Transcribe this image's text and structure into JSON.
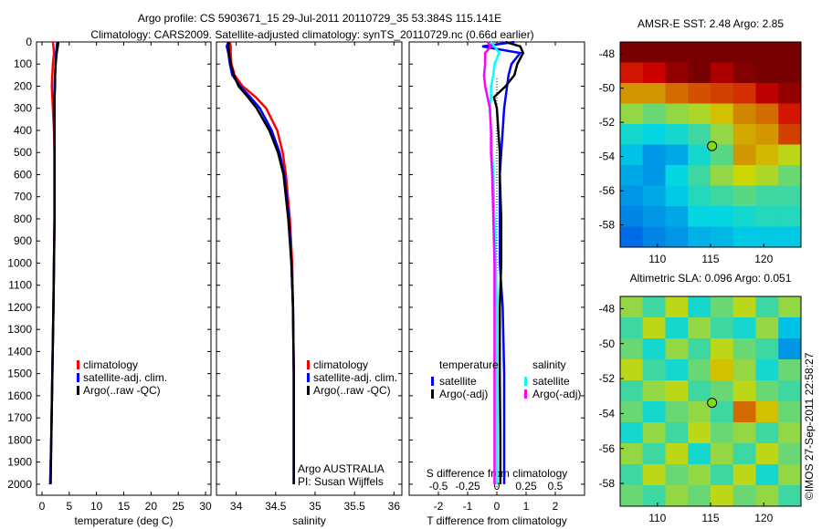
{
  "title": {
    "line1": "Argo profile: CS 5903671_15 29-Jul-2011 20110729_35 53.384S 115.141E",
    "line2": "Climatology: CARS2009. Satellite-adjusted climatology: synTS_20110729.nc (0.66d earlier)"
  },
  "footer": "©IMOS 27-Sep-2011 22:58:27",
  "colors": {
    "clim": "#ff0000",
    "sat": "#0000ff",
    "argo": "#000000",
    "s_sat": "#00ffff",
    "s_argo": "#ff00ff"
  },
  "chart_data": [
    {
      "type": "line",
      "name": "temperature",
      "xlabel": "temperature (deg C)",
      "xlim": [
        -1,
        31
      ],
      "ylim": [
        2050,
        0
      ],
      "xticks": [
        0,
        5,
        10,
        15,
        20,
        25,
        30
      ],
      "yticks": [
        0,
        100,
        200,
        300,
        400,
        500,
        600,
        700,
        800,
        900,
        1000,
        1100,
        1200,
        1300,
        1400,
        1500,
        1600,
        1700,
        1800,
        1900,
        2000
      ],
      "depth": [
        0,
        20,
        50,
        100,
        150,
        200,
        250,
        300,
        400,
        500,
        600,
        800,
        1000,
        1200,
        1500,
        1800,
        2000
      ],
      "series": [
        {
          "name": "climatology",
          "color": "#ff0000",
          "values": [
            2.0,
            2.1,
            2.2,
            2.0,
            1.9,
            1.8,
            1.9,
            2.0,
            2.2,
            2.3,
            2.3,
            2.3,
            2.2,
            2.1,
            1.9,
            1.7,
            1.5
          ]
        },
        {
          "name": "satellite-adj. clim.",
          "color": "#0000ff",
          "values": [
            2.8,
            2.7,
            2.6,
            2.5,
            2.4,
            2.3,
            2.3,
            2.3,
            2.3,
            2.3,
            2.3,
            2.3,
            2.2,
            2.1,
            1.9,
            1.7,
            1.5
          ]
        },
        {
          "name": "Argo(..raw -QC)",
          "color": "#000000",
          "values": [
            3.0,
            2.9,
            2.7,
            2.5,
            2.4,
            2.4,
            2.3,
            2.3,
            2.3,
            2.3,
            2.3,
            2.3,
            2.2,
            2.1,
            1.9,
            1.7,
            1.6
          ]
        }
      ]
    },
    {
      "type": "line",
      "name": "salinity",
      "xlabel": "salinity",
      "xlim": [
        33.75,
        36.1
      ],
      "ylim": [
        2050,
        0
      ],
      "xticks": [
        34,
        34.5,
        35,
        35.5,
        36
      ],
      "depth": [
        0,
        20,
        50,
        100,
        150,
        200,
        250,
        300,
        400,
        500,
        600,
        800,
        1000,
        1200,
        1500,
        1800,
        2000
      ],
      "series": [
        {
          "name": "climatology",
          "color": "#ff0000",
          "values": [
            33.92,
            33.93,
            33.93,
            33.94,
            33.98,
            34.08,
            34.25,
            34.38,
            34.52,
            34.59,
            34.63,
            34.68,
            34.71,
            34.72,
            34.73,
            34.73,
            34.73
          ]
        },
        {
          "name": "satellite-adj. clim.",
          "color": "#0000ff",
          "values": [
            33.9,
            33.88,
            33.9,
            33.92,
            33.95,
            34.05,
            34.18,
            34.3,
            34.45,
            34.55,
            34.61,
            34.67,
            34.7,
            34.72,
            34.73,
            34.73,
            34.73
          ]
        },
        {
          "name": "Argo(..raw -QC)",
          "color": "#000000",
          "values": [
            33.91,
            33.9,
            33.91,
            33.93,
            33.97,
            34.03,
            34.15,
            34.26,
            34.42,
            34.53,
            34.6,
            34.66,
            34.7,
            34.72,
            34.73,
            34.73,
            34.73
          ]
        }
      ],
      "annotation": [
        "Argo AUSTRALIA",
        "PI: Susan Wijffels"
      ]
    },
    {
      "type": "line",
      "name": "difference",
      "xlabel": "T difference from climatology",
      "xlabel2": "S difference from climatology",
      "xlim": [
        -3,
        3
      ],
      "ylim": [
        2050,
        0
      ],
      "xticks": [
        -2,
        -1,
        0,
        1,
        2
      ],
      "xticks2": [
        "-0.5",
        "-0.25",
        "0",
        "0.25",
        "0.5"
      ],
      "depth": [
        0,
        20,
        50,
        100,
        150,
        200,
        250,
        300,
        400,
        500,
        600,
        800,
        1000,
        1200,
        1500,
        1800,
        2000
      ],
      "legend_headers": [
        "temperature",
        "salinity"
      ],
      "series": [
        {
          "name": "satellite",
          "group": "temperature",
          "color": "#0000ff",
          "scale": 1,
          "values": [
            0.6,
            -0.5,
            0.8,
            0.5,
            0.4,
            0.35,
            0.3,
            0.25,
            0.2,
            0.15,
            0.1,
            0.1,
            0.1,
            0.2,
            0.25,
            0.25,
            0.25
          ]
        },
        {
          "name": "Argo(-adj)",
          "group": "temperature",
          "color": "#000000",
          "scale": 1,
          "values": [
            0.3,
            0.8,
            0.9,
            0.7,
            0.6,
            0.3,
            -0.1,
            0.0,
            0.05,
            0.1,
            0.1,
            0.15,
            0.15,
            0.1,
            0.1,
            0.12,
            0.12
          ]
        },
        {
          "name": "satellite",
          "group": "salinity",
          "color": "#00ffff",
          "scale": 4,
          "values": [
            -0.05,
            -0.02,
            0.02,
            -0.02,
            -0.03,
            -0.05,
            -0.05,
            -0.06,
            -0.05,
            -0.04,
            -0.03,
            -0.02,
            -0.01,
            0,
            0,
            0,
            0
          ]
        },
        {
          "name": "Argo(-adj)",
          "group": "salinity",
          "color": "#ff00ff",
          "scale": 4,
          "values": [
            -0.08,
            -0.05,
            -0.1,
            -0.1,
            -0.11,
            -0.1,
            -0.08,
            -0.06,
            -0.05,
            -0.05,
            -0.04,
            -0.03,
            -0.02,
            -0.02,
            -0.02,
            -0.02,
            -0.02
          ]
        }
      ]
    },
    {
      "type": "heatmap",
      "name": "sst-map",
      "title": "AMSR-E SST: 2.48 Argo: 2.85",
      "xlim": [
        106.5,
        123.5
      ],
      "ylim": [
        -59.3,
        -47.3
      ],
      "xticks": [
        110,
        115,
        120
      ],
      "yticks": [
        -48,
        -50,
        -52,
        -54,
        -56,
        -58
      ],
      "marker": [
        115.141,
        -53.384
      ],
      "grid": [
        [
          0.98,
          0.98,
          0.98,
          0.98,
          0.98,
          0.98,
          0.98,
          0.98
        ],
        [
          0.85,
          0.88,
          0.95,
          0.98,
          0.92,
          0.97,
          0.98,
          0.98
        ],
        [
          0.7,
          0.7,
          0.75,
          0.78,
          0.8,
          0.82,
          0.9,
          0.95
        ],
        [
          0.55,
          0.5,
          0.55,
          0.58,
          0.65,
          0.72,
          0.75,
          0.85
        ],
        [
          0.4,
          0.38,
          0.4,
          0.45,
          0.55,
          0.68,
          0.7,
          0.8
        ],
        [
          0.35,
          0.3,
          0.32,
          0.4,
          0.48,
          0.7,
          0.66,
          0.6
        ],
        [
          0.32,
          0.3,
          0.38,
          0.45,
          0.55,
          0.62,
          0.58,
          0.5
        ],
        [
          0.3,
          0.32,
          0.36,
          0.42,
          0.45,
          0.48,
          0.45,
          0.45
        ],
        [
          0.28,
          0.3,
          0.32,
          0.38,
          0.38,
          0.4,
          0.42,
          0.42
        ],
        [
          0.25,
          0.28,
          0.3,
          0.33,
          0.34,
          0.36,
          0.36,
          0.36
        ]
      ]
    },
    {
      "type": "heatmap",
      "name": "sla-map",
      "title": "Altimetric SLA: 0.096 Argo: 0.051",
      "xlim": [
        106.5,
        123.5
      ],
      "ylim": [
        -59.3,
        -47.3
      ],
      "xticks": [
        110,
        115,
        120
      ],
      "yticks": [
        -48,
        -50,
        -52,
        -54,
        -56,
        -58
      ],
      "marker": [
        115.141,
        -53.384
      ],
      "grid": [
        [
          0.55,
          0.45,
          0.6,
          0.4,
          0.5,
          0.6,
          0.45,
          0.55
        ],
        [
          0.45,
          0.6,
          0.4,
          0.55,
          0.45,
          0.4,
          0.55,
          0.35
        ],
        [
          0.5,
          0.4,
          0.55,
          0.45,
          0.6,
          0.5,
          0.45,
          0.3
        ],
        [
          0.6,
          0.45,
          0.4,
          0.5,
          0.65,
          0.55,
          0.4,
          0.5
        ],
        [
          0.45,
          0.55,
          0.6,
          0.45,
          0.5,
          0.6,
          0.5,
          0.45
        ],
        [
          0.5,
          0.4,
          0.5,
          0.55,
          0.45,
          0.75,
          0.65,
          0.5
        ],
        [
          0.4,
          0.55,
          0.45,
          0.6,
          0.5,
          0.55,
          0.45,
          0.55
        ],
        [
          0.55,
          0.45,
          0.6,
          0.4,
          0.55,
          0.45,
          0.6,
          0.5
        ],
        [
          0.45,
          0.6,
          0.5,
          0.55,
          0.45,
          0.6,
          0.4,
          0.55
        ],
        [
          0.5,
          0.45,
          0.55,
          0.5,
          0.6,
          0.5,
          0.55,
          0.45
        ]
      ]
    }
  ]
}
